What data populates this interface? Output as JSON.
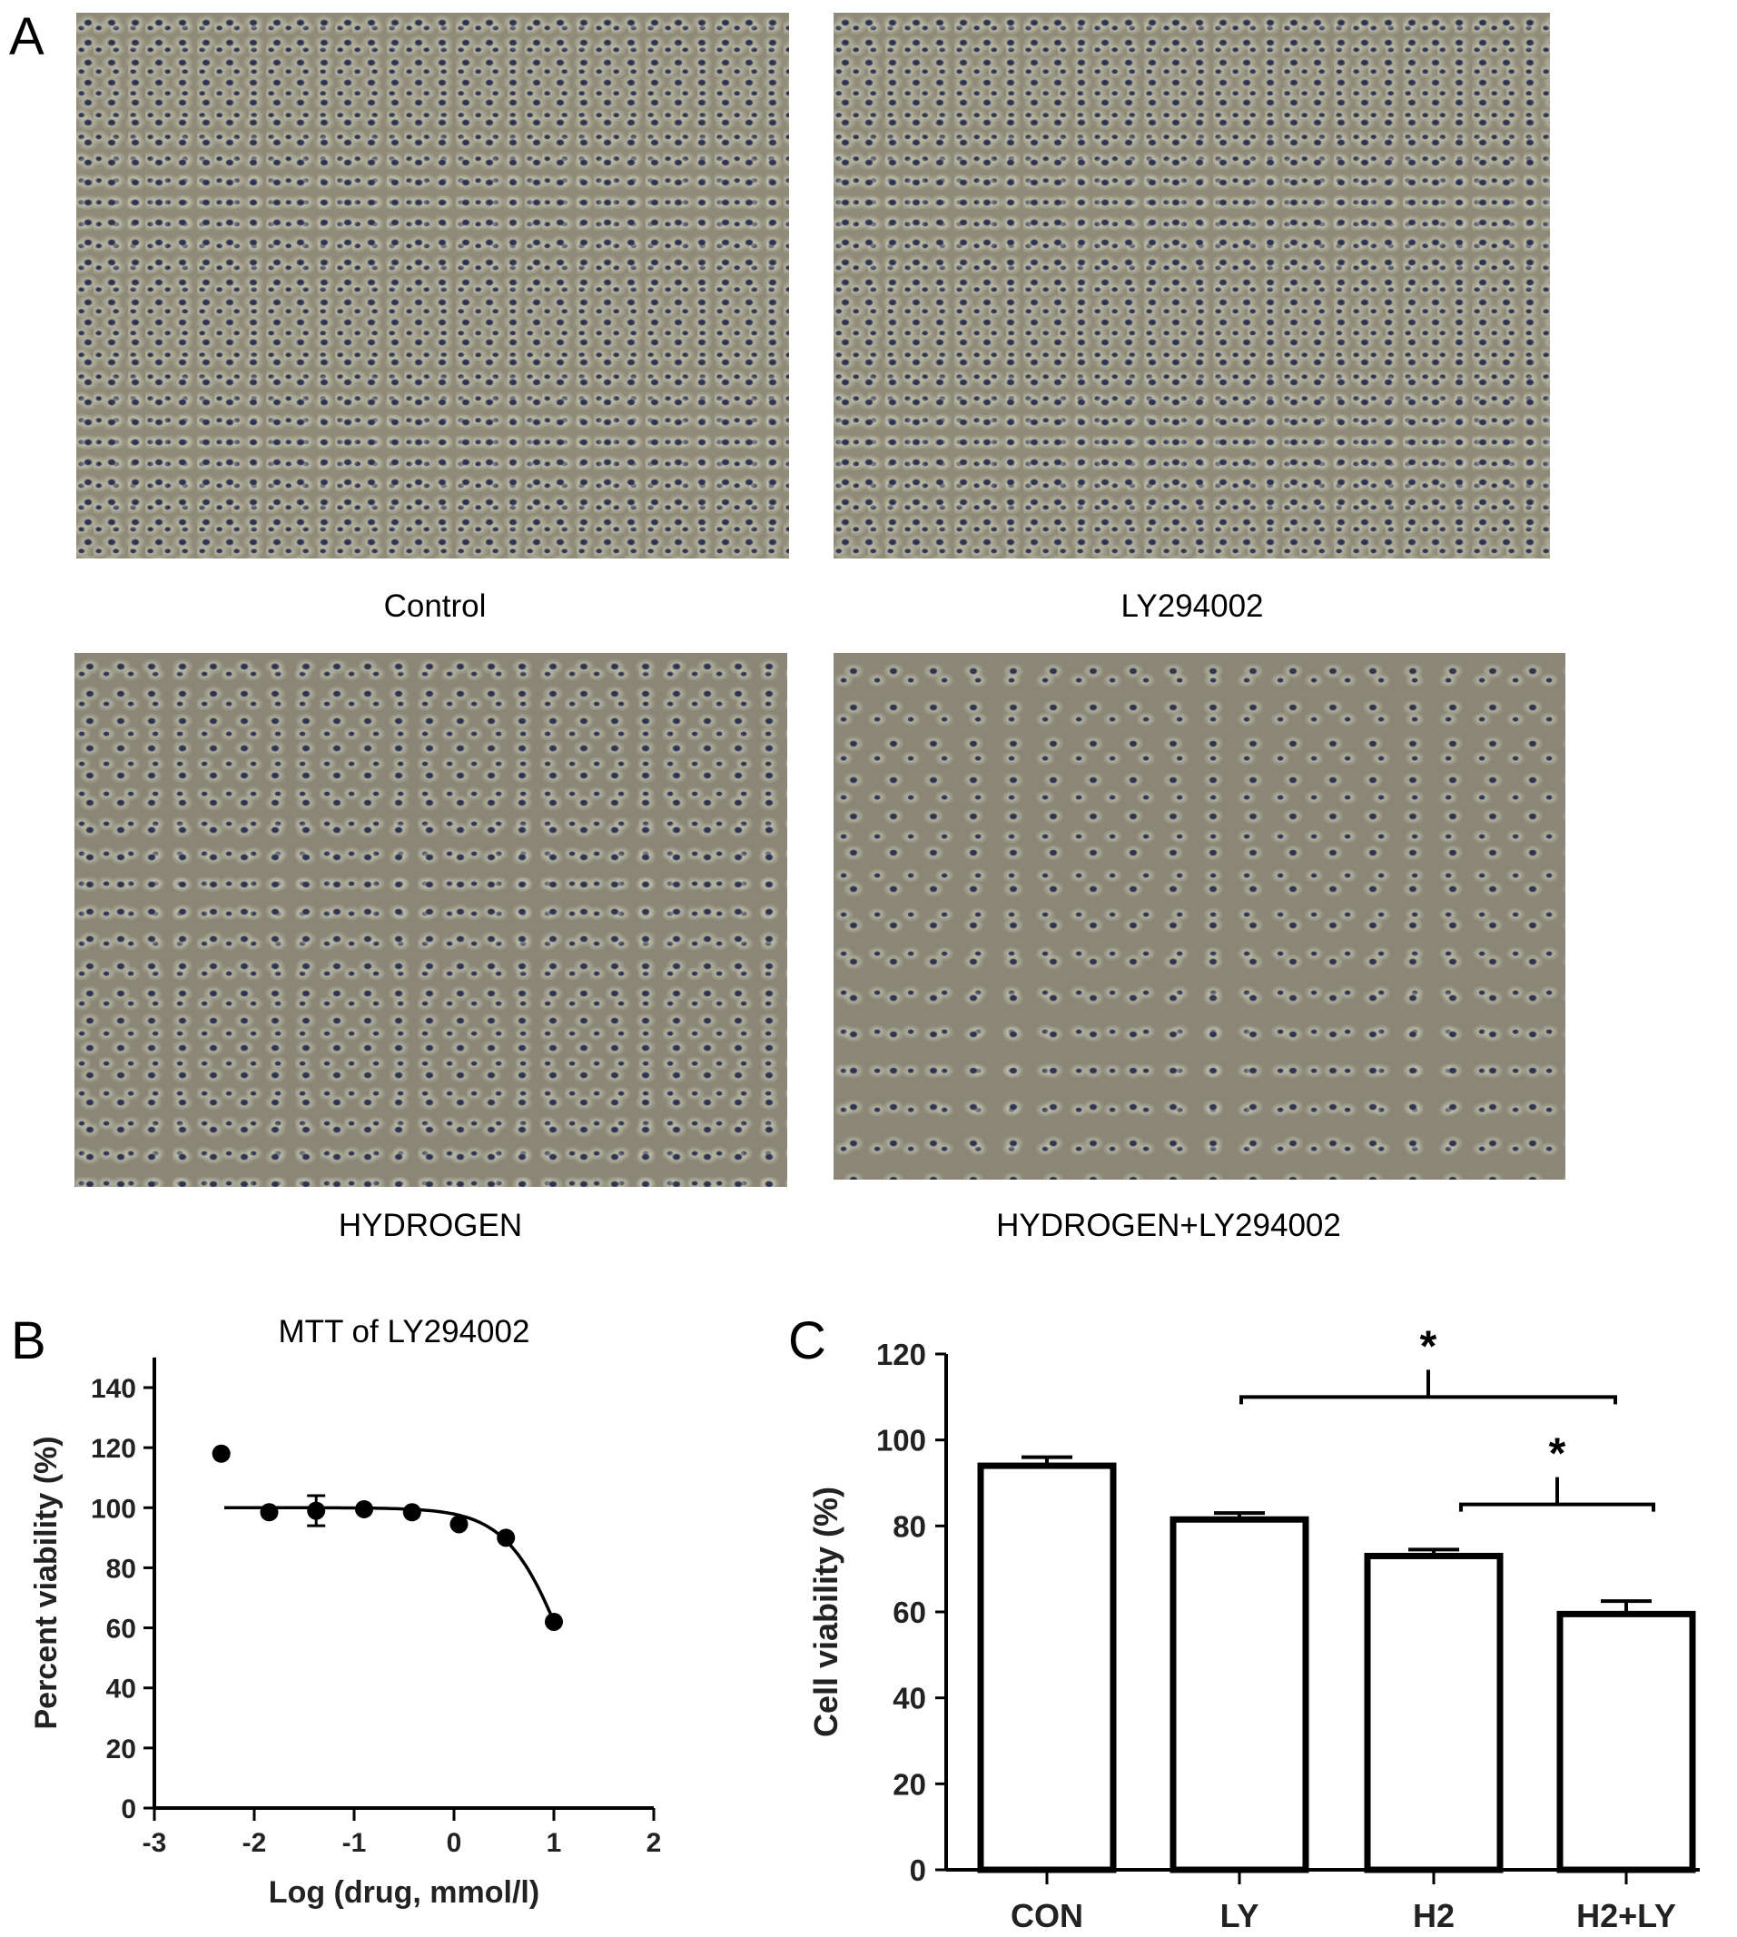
{
  "panels": {
    "a": {
      "label": "A",
      "images": [
        {
          "caption": "Control"
        },
        {
          "caption": "LY294002"
        },
        {
          "caption": "HYDROGEN"
        },
        {
          "caption": "HYDROGEN+LY294002"
        }
      ]
    },
    "b": {
      "label": "B"
    },
    "c": {
      "label": "C"
    }
  },
  "chart_data": [
    {
      "type": "scatter",
      "title": "MTT of  LY294002",
      "xlabel": "Log (drug, mmol/l)",
      "ylabel": "Percent viability (%)",
      "xlim": [
        -3,
        2
      ],
      "ylim": [
        0,
        150
      ],
      "xticks": [
        "-3",
        "-2",
        "-1",
        "0",
        "1",
        "2"
      ],
      "yticks": [
        "0",
        "20",
        "40",
        "60",
        "80",
        "100",
        "120",
        "140"
      ],
      "points": [
        {
          "x": -2.33,
          "y": 118,
          "err": 0
        },
        {
          "x": -1.85,
          "y": 98.5,
          "err": 0
        },
        {
          "x": -1.38,
          "y": 99,
          "err": 5
        },
        {
          "x": -0.9,
          "y": 99.5,
          "err": 0
        },
        {
          "x": -0.42,
          "y": 98.5,
          "err": 0
        },
        {
          "x": 0.05,
          "y": 94.5,
          "err": 0
        },
        {
          "x": 0.52,
          "y": 90,
          "err": 0
        },
        {
          "x": 1.0,
          "y": 62,
          "err": 0
        }
      ],
      "fit_curve": {
        "top": 100,
        "bottom": 0,
        "log_ic50": 1.147,
        "hill_slope": 1.45,
        "x_range": [
          -2.3,
          1.0
        ]
      },
      "grid": false
    },
    {
      "type": "bar",
      "xlabel": "",
      "ylabel": "Cell viability (%)",
      "ylim": [
        0,
        120
      ],
      "yticks": [
        "0",
        "20",
        "40",
        "60",
        "80",
        "100",
        "120"
      ],
      "categories": [
        "CON",
        "LY",
        "H2",
        "H2+LY"
      ],
      "values": [
        94,
        81.5,
        73,
        59.5
      ],
      "errors": [
        2,
        1.5,
        1.5,
        3
      ],
      "significance": [
        {
          "from": "LY",
          "to": "H2+LY",
          "y": 110,
          "label": "*"
        },
        {
          "from": "H2",
          "to": "H2+LY",
          "y": 85,
          "label": "*"
        }
      ],
      "grid": false
    }
  ]
}
